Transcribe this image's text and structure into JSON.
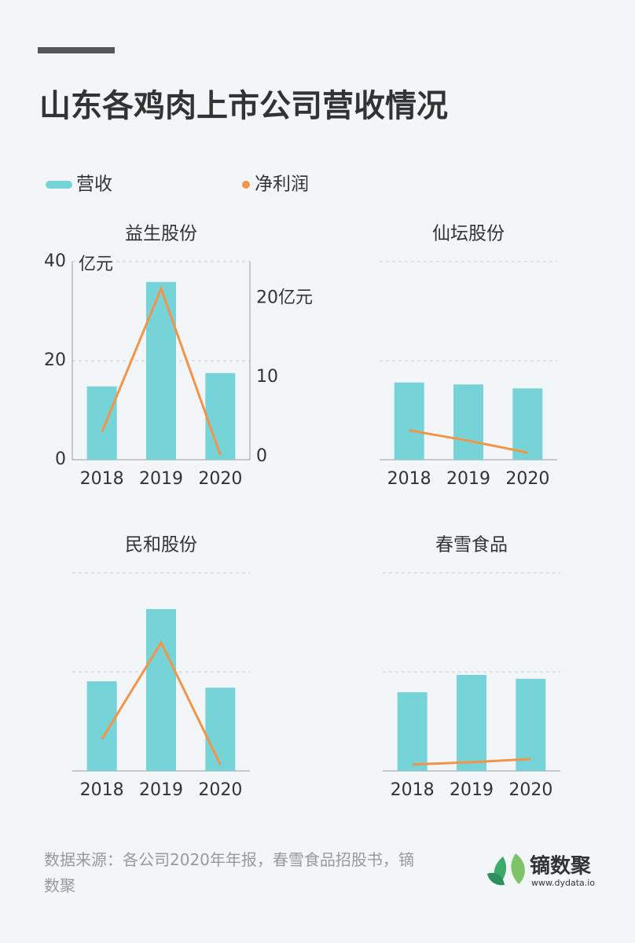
{
  "title": "山东各鸡肉上市公司营收情况",
  "source": "数据来源：各公司2020年年报，春雪食品招股书，镝数聚",
  "logo": {
    "name": "镝数聚",
    "url": "www.dydata.io"
  },
  "chart_data": [
    {
      "type": "bar",
      "title": "益生股份",
      "categories": [
        "2018",
        "2019",
        "2020"
      ],
      "ylabel": "亿元",
      "ylim": [
        0,
        40
      ],
      "yticks": [
        0,
        20,
        40
      ],
      "y2lim": [
        0,
        25
      ],
      "y2ticks": [
        0,
        10,
        {
          "value": 20,
          "label": "20亿元"
        }
      ],
      "tick_labels": true,
      "axis_lines": true,
      "grid": true,
      "series": [
        {
          "name": "营收",
          "type": "bar",
          "color": "#76d3d8",
          "values": [
            14.8,
            35.9,
            17.5
          ]
        },
        {
          "name": "净利润",
          "type": "line",
          "axis": "y2",
          "color": "#f0954a",
          "values": [
            3.5,
            21.6,
            0.6
          ]
        }
      ]
    },
    {
      "type": "bar",
      "title": "仙坛股份",
      "categories": [
        "2018",
        "2019",
        "2020"
      ],
      "ylim": [
        0,
        40
      ],
      "yticks": [
        0,
        20,
        40
      ],
      "y2lim": [
        0,
        25
      ],
      "tick_labels": false,
      "axis_lines": false,
      "grid": true,
      "series": [
        {
          "name": "营收",
          "type": "bar",
          "color": "#76d3d8",
          "values": [
            15.6,
            15.2,
            14.4
          ]
        },
        {
          "name": "净利润",
          "type": "line",
          "axis": "y2",
          "color": "#f0954a",
          "values": [
            3.7,
            2.4,
            0.9
          ]
        }
      ]
    },
    {
      "type": "bar",
      "title": "民和股份",
      "categories": [
        "2018",
        "2019",
        "2020"
      ],
      "ylim": [
        0,
        40
      ],
      "yticks": [
        0,
        20,
        40
      ],
      "y2lim": [
        0,
        25
      ],
      "tick_labels": false,
      "axis_lines": false,
      "grid": true,
      "series": [
        {
          "name": "营收",
          "type": "bar",
          "color": "#76d3d8",
          "values": [
            18.1,
            32.7,
            16.8
          ]
        },
        {
          "name": "净利润",
          "type": "line",
          "axis": "y2",
          "color": "#f0954a",
          "values": [
            4.0,
            16.2,
            0.8
          ]
        }
      ]
    },
    {
      "type": "bar",
      "title": "春雪食品",
      "categories": [
        "2018",
        "2019",
        "2020"
      ],
      "ylim": [
        0,
        40
      ],
      "yticks": [
        0,
        20,
        40
      ],
      "y2lim": [
        0,
        25
      ],
      "tick_labels": false,
      "axis_lines": false,
      "grid": true,
      "series": [
        {
          "name": "营收",
          "type": "bar",
          "color": "#76d3d8",
          "values": [
            15.9,
            19.4,
            18.6
          ]
        },
        {
          "name": "净利润",
          "type": "line",
          "axis": "y2",
          "color": "#f0954a",
          "values": [
            0.8,
            1.1,
            1.5
          ]
        }
      ]
    }
  ]
}
